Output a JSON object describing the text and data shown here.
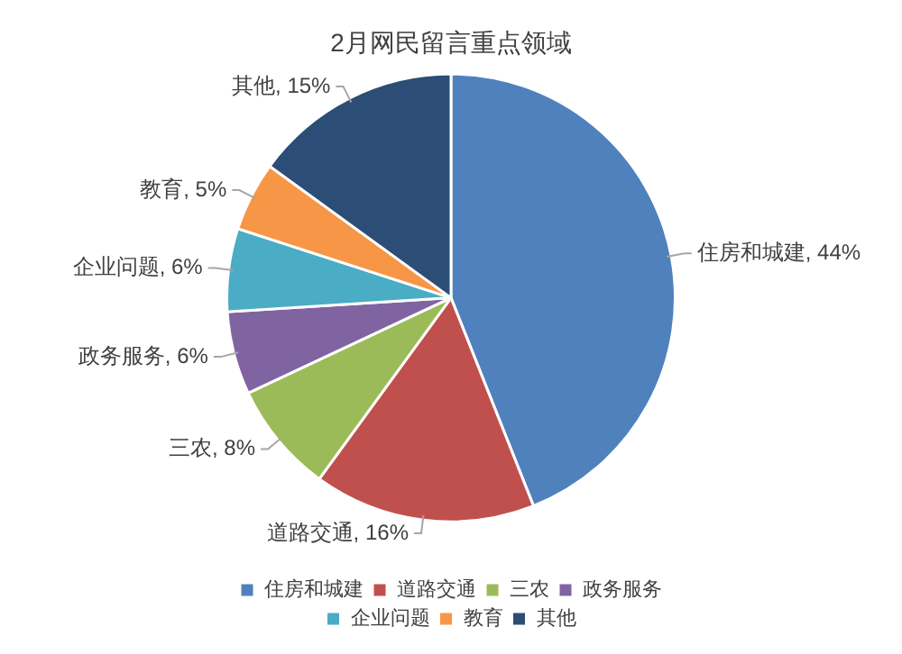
{
  "chart_data": {
    "type": "pie",
    "title": "2月网民留言重点领域",
    "categories": [
      "住房和城建",
      "道路交通",
      "三农",
      "政务服务",
      "企业问题",
      "教育",
      "其他"
    ],
    "values": [
      44,
      16,
      8,
      6,
      6,
      5,
      15
    ],
    "value_labels": [
      "住房和城建, 44%",
      "道路交通, 16%",
      "三农, 8%",
      "政务服务, 6%",
      "企业问题, 6%",
      "教育, 5%",
      "其他, 15%"
    ],
    "colors": [
      "#4f81bd",
      "#c0504d",
      "#9bbb59",
      "#8064a2",
      "#4bacc6",
      "#f79646",
      "#2c4d75"
    ],
    "legend": "bottom"
  }
}
